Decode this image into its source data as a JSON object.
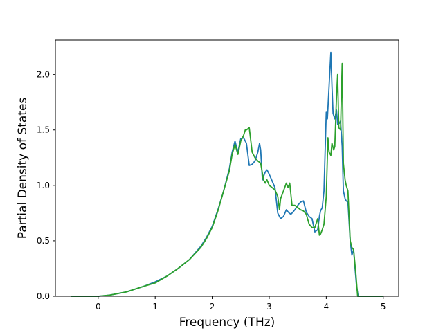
{
  "chart_data": {
    "type": "line",
    "title": "",
    "xlabel": "Frequency (THz)",
    "ylabel": "Partial Density of States",
    "xlim": [
      -0.75,
      5.27
    ],
    "ylim": [
      0,
      2.31
    ],
    "xticks": [
      0,
      1,
      2,
      3,
      4,
      5
    ],
    "xtick_labels": [
      "0",
      "1",
      "2",
      "3",
      "4",
      "5"
    ],
    "yticks": [
      0.0,
      0.5,
      1.0,
      1.5,
      2.0
    ],
    "ytick_labels": [
      "0.0",
      "0.5",
      "1.0",
      "1.5",
      "2.0"
    ],
    "grid": false,
    "legend": "none",
    "series": [
      {
        "color": "#1f77b4",
        "x": [
          -0.48,
          0.0,
          0.2,
          0.5,
          0.8,
          1.0,
          1.2,
          1.4,
          1.6,
          1.8,
          1.9,
          2.0,
          2.1,
          2.2,
          2.3,
          2.35,
          2.4,
          2.45,
          2.5,
          2.55,
          2.6,
          2.65,
          2.7,
          2.75,
          2.8,
          2.83,
          2.85,
          2.88,
          2.9,
          2.93,
          2.96,
          3.0,
          3.05,
          3.1,
          3.15,
          3.2,
          3.25,
          3.3,
          3.35,
          3.38,
          3.4,
          3.45,
          3.5,
          3.55,
          3.6,
          3.65,
          3.7,
          3.75,
          3.8,
          3.85,
          3.88,
          3.9,
          3.93,
          3.96,
          4.0,
          4.02,
          4.05,
          4.08,
          4.1,
          4.12,
          4.15,
          4.18,
          4.2,
          4.23,
          4.25,
          4.28,
          4.3,
          4.33,
          4.35,
          4.38,
          4.42,
          4.45,
          4.48,
          4.5,
          4.53,
          4.56,
          4.6,
          5.0
        ],
        "y": [
          0.0,
          0.0,
          0.01,
          0.04,
          0.09,
          0.13,
          0.18,
          0.25,
          0.33,
          0.45,
          0.53,
          0.63,
          0.78,
          0.95,
          1.15,
          1.3,
          1.4,
          1.3,
          1.42,
          1.43,
          1.38,
          1.18,
          1.19,
          1.22,
          1.3,
          1.38,
          1.32,
          1.05,
          1.08,
          1.12,
          1.14,
          1.1,
          1.04,
          0.98,
          0.75,
          0.7,
          0.72,
          0.78,
          0.75,
          0.74,
          0.75,
          0.78,
          0.82,
          0.85,
          0.86,
          0.76,
          0.72,
          0.7,
          0.58,
          0.6,
          0.72,
          0.77,
          0.8,
          0.95,
          1.66,
          1.6,
          1.9,
          2.2,
          1.9,
          1.65,
          1.6,
          1.68,
          1.55,
          1.56,
          1.58,
          1.35,
          0.95,
          0.88,
          0.86,
          0.85,
          0.5,
          0.37,
          0.42,
          0.28,
          0.1,
          0.0,
          0.0,
          0.0
        ]
      },
      {
        "color": "#2ca02c",
        "x": [
          -0.48,
          0.0,
          0.2,
          0.5,
          0.8,
          1.0,
          1.2,
          1.4,
          1.6,
          1.8,
          1.9,
          2.0,
          2.1,
          2.2,
          2.3,
          2.35,
          2.4,
          2.45,
          2.5,
          2.55,
          2.58,
          2.6,
          2.65,
          2.7,
          2.75,
          2.8,
          2.85,
          2.9,
          2.93,
          2.96,
          3.0,
          3.05,
          3.1,
          3.15,
          3.18,
          3.2,
          3.25,
          3.3,
          3.33,
          3.36,
          3.4,
          3.45,
          3.5,
          3.55,
          3.6,
          3.65,
          3.7,
          3.75,
          3.8,
          3.85,
          3.88,
          3.9,
          3.93,
          3.96,
          4.0,
          4.03,
          4.05,
          4.08,
          4.1,
          4.13,
          4.15,
          4.18,
          4.2,
          4.22,
          4.25,
          4.28,
          4.3,
          4.33,
          4.35,
          4.38,
          4.42,
          4.45,
          4.48,
          4.52,
          4.55,
          4.6,
          5.0
        ],
        "y": [
          0.0,
          0.0,
          0.01,
          0.04,
          0.09,
          0.12,
          0.18,
          0.25,
          0.33,
          0.44,
          0.52,
          0.62,
          0.77,
          0.95,
          1.13,
          1.28,
          1.37,
          1.28,
          1.4,
          1.45,
          1.5,
          1.5,
          1.52,
          1.3,
          1.25,
          1.22,
          1.2,
          1.05,
          1.02,
          1.05,
          1.0,
          0.98,
          0.96,
          0.9,
          0.78,
          0.88,
          0.95,
          1.02,
          0.98,
          1.02,
          0.82,
          0.82,
          0.8,
          0.78,
          0.77,
          0.74,
          0.65,
          0.62,
          0.62,
          0.7,
          0.55,
          0.56,
          0.6,
          0.65,
          0.9,
          1.43,
          1.3,
          1.27,
          1.38,
          1.32,
          1.35,
          1.8,
          2.0,
          1.52,
          1.5,
          2.1,
          1.2,
          1.05,
          1.0,
          0.95,
          0.5,
          0.44,
          0.42,
          0.2,
          0.0,
          0.0,
          0.0
        ]
      }
    ]
  }
}
